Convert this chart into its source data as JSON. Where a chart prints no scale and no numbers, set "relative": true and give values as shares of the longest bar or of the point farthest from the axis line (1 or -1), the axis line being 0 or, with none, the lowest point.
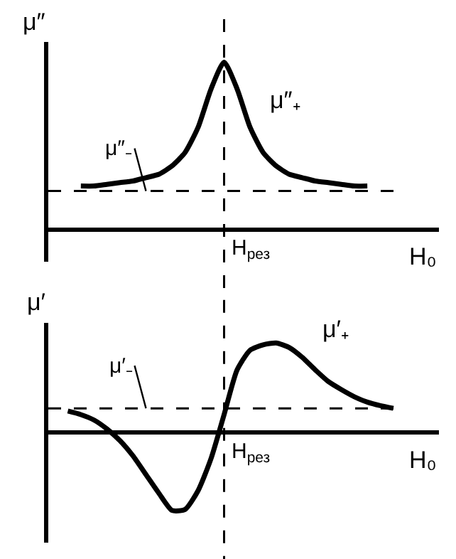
{
  "chart_data": [
    {
      "type": "line",
      "relative": true,
      "ylabel": "μ″",
      "xlabel": "H₀",
      "annotations": [
        "H$_{рез}$"
      ],
      "categories": [
        null,
        null,
        null,
        null,
        null,
        null,
        null,
        null,
        null,
        null,
        null,
        null,
        null,
        null,
        null,
        null,
        null,
        null,
        null,
        null,
        null,
        null,
        null,
        null,
        null,
        null
      ],
      "series": [
        {
          "name": "μ″₊",
          "color": "#000000",
          "values": [
            null,
            0.26,
            0.26,
            0.27,
            0.28,
            0.29,
            0.31,
            0.33,
            0.38,
            0.46,
            0.61,
            0.84,
            1,
            0.84,
            0.61,
            0.46,
            0.38,
            0.33,
            0.31,
            0.29,
            0.28,
            0.27,
            0.26,
            0.26,
            null,
            null
          ]
        }
      ],
      "ref_lines": [
        {
          "axis": "y",
          "value": 0.23,
          "label": "μ″₋",
          "line_style": "dashed",
          "color": "#000000"
        }
      ]
    },
    {
      "type": "line",
      "relative": true,
      "ylabel": "μ′",
      "xlabel": "H₀",
      "annotations": [
        "H$_{рез}$"
      ],
      "categories": [
        null,
        null,
        null,
        null,
        null,
        null,
        null,
        null,
        null,
        null,
        null,
        null,
        null,
        null,
        null,
        null,
        null,
        null,
        null,
        null,
        null,
        null,
        null,
        null,
        null,
        null
      ],
      "series": [
        {
          "name": "μ′₊",
          "color": "#000000",
          "values": [
            0.24,
            0.2,
            0.14,
            0.04,
            -0.09,
            -0.26,
            -0.47,
            -0.68,
            -0.87,
            -0.86,
            -0.65,
            -0.29,
            0.2,
            0.7,
            0.92,
            0.98,
            1,
            0.95,
            0.84,
            0.7,
            0.57,
            0.48,
            0.4,
            0.34,
            0.3,
            0.27
          ]
        }
      ],
      "ref_lines": [
        {
          "axis": "y",
          "value": 0.27,
          "label": "μ′₋",
          "line_style": "dashed",
          "color": "#000000"
        }
      ]
    }
  ]
}
